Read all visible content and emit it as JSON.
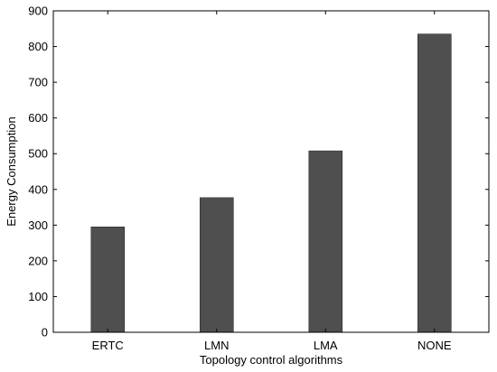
{
  "chart_data": {
    "type": "bar",
    "title": "",
    "xlabel": "Topology control algorithms",
    "ylabel": "Energy Consumption",
    "categories": [
      "ERTC",
      "LMN",
      "LMA",
      "NONE"
    ],
    "values": [
      295,
      377,
      508,
      835
    ],
    "ylim": [
      0,
      900
    ],
    "yticks": [
      0,
      100,
      200,
      300,
      400,
      500,
      600,
      700,
      800,
      900
    ],
    "grid": false,
    "legend": "none",
    "bar_color": "#4f4f4f",
    "axis_color": "#000000"
  }
}
